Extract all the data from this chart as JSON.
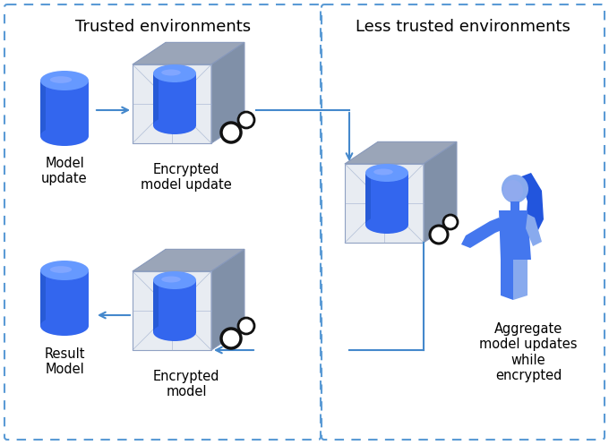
{
  "bg_color": "#ffffff",
  "border_color": "#5b9bd5",
  "left_box_title": "Trusted environments",
  "right_box_title": "Less trusted environments",
  "cyl_blue_dark": "#2255dd",
  "cyl_blue_mid": "#3366ee",
  "cyl_blue_light": "#6699ff",
  "cyl_top_light": "#88aaff",
  "cube_top_color": "#9aa5b8",
  "cube_right_color": "#8090a8",
  "cube_front_color": "#e8ecf2",
  "cube_edge_color": "#8899bb",
  "cube_inner_line": "#99aacc",
  "lock_color": "#111111",
  "label_model_update": "Model\nupdate",
  "label_enc_model_update": "Encrypted\nmodel update",
  "label_result_model": "Result\nModel",
  "label_enc_model": "Encrypted\nmodel",
  "label_aggregate": "Aggregate\nmodel updates\nwhile\nencrypted",
  "title_fontsize": 13,
  "label_fontsize": 10.5,
  "arrow_color": "#4488cc",
  "person_blue": "#4477ee",
  "person_dark": "#2255cc",
  "person_light": "#88aaee"
}
